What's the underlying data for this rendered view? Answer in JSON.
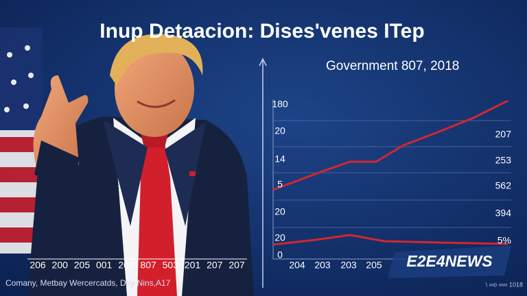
{
  "title": "Inup  Detaacion: Dises'venes ITep",
  "subtitle": "Government 807, 2018",
  "chart": {
    "left_labels": [
      "180",
      "20",
      "14",
      "5",
      "20",
      "20",
      "0"
    ],
    "right_labels": [
      "207",
      "253",
      "562",
      "394",
      "5%"
    ],
    "x_labels": [
      "204",
      "203",
      "203",
      "205"
    ]
  },
  "strip_labels": [
    "206",
    "200",
    "205",
    "001",
    "202",
    "807",
    "503",
    "201",
    "207",
    "207"
  ],
  "caption": "Comany, Metbay Wercercatds, Dey Nins,A17",
  "logo": "E2E4NEWS",
  "footer_note": "\\ ∞o ∞∞ 1018"
}
